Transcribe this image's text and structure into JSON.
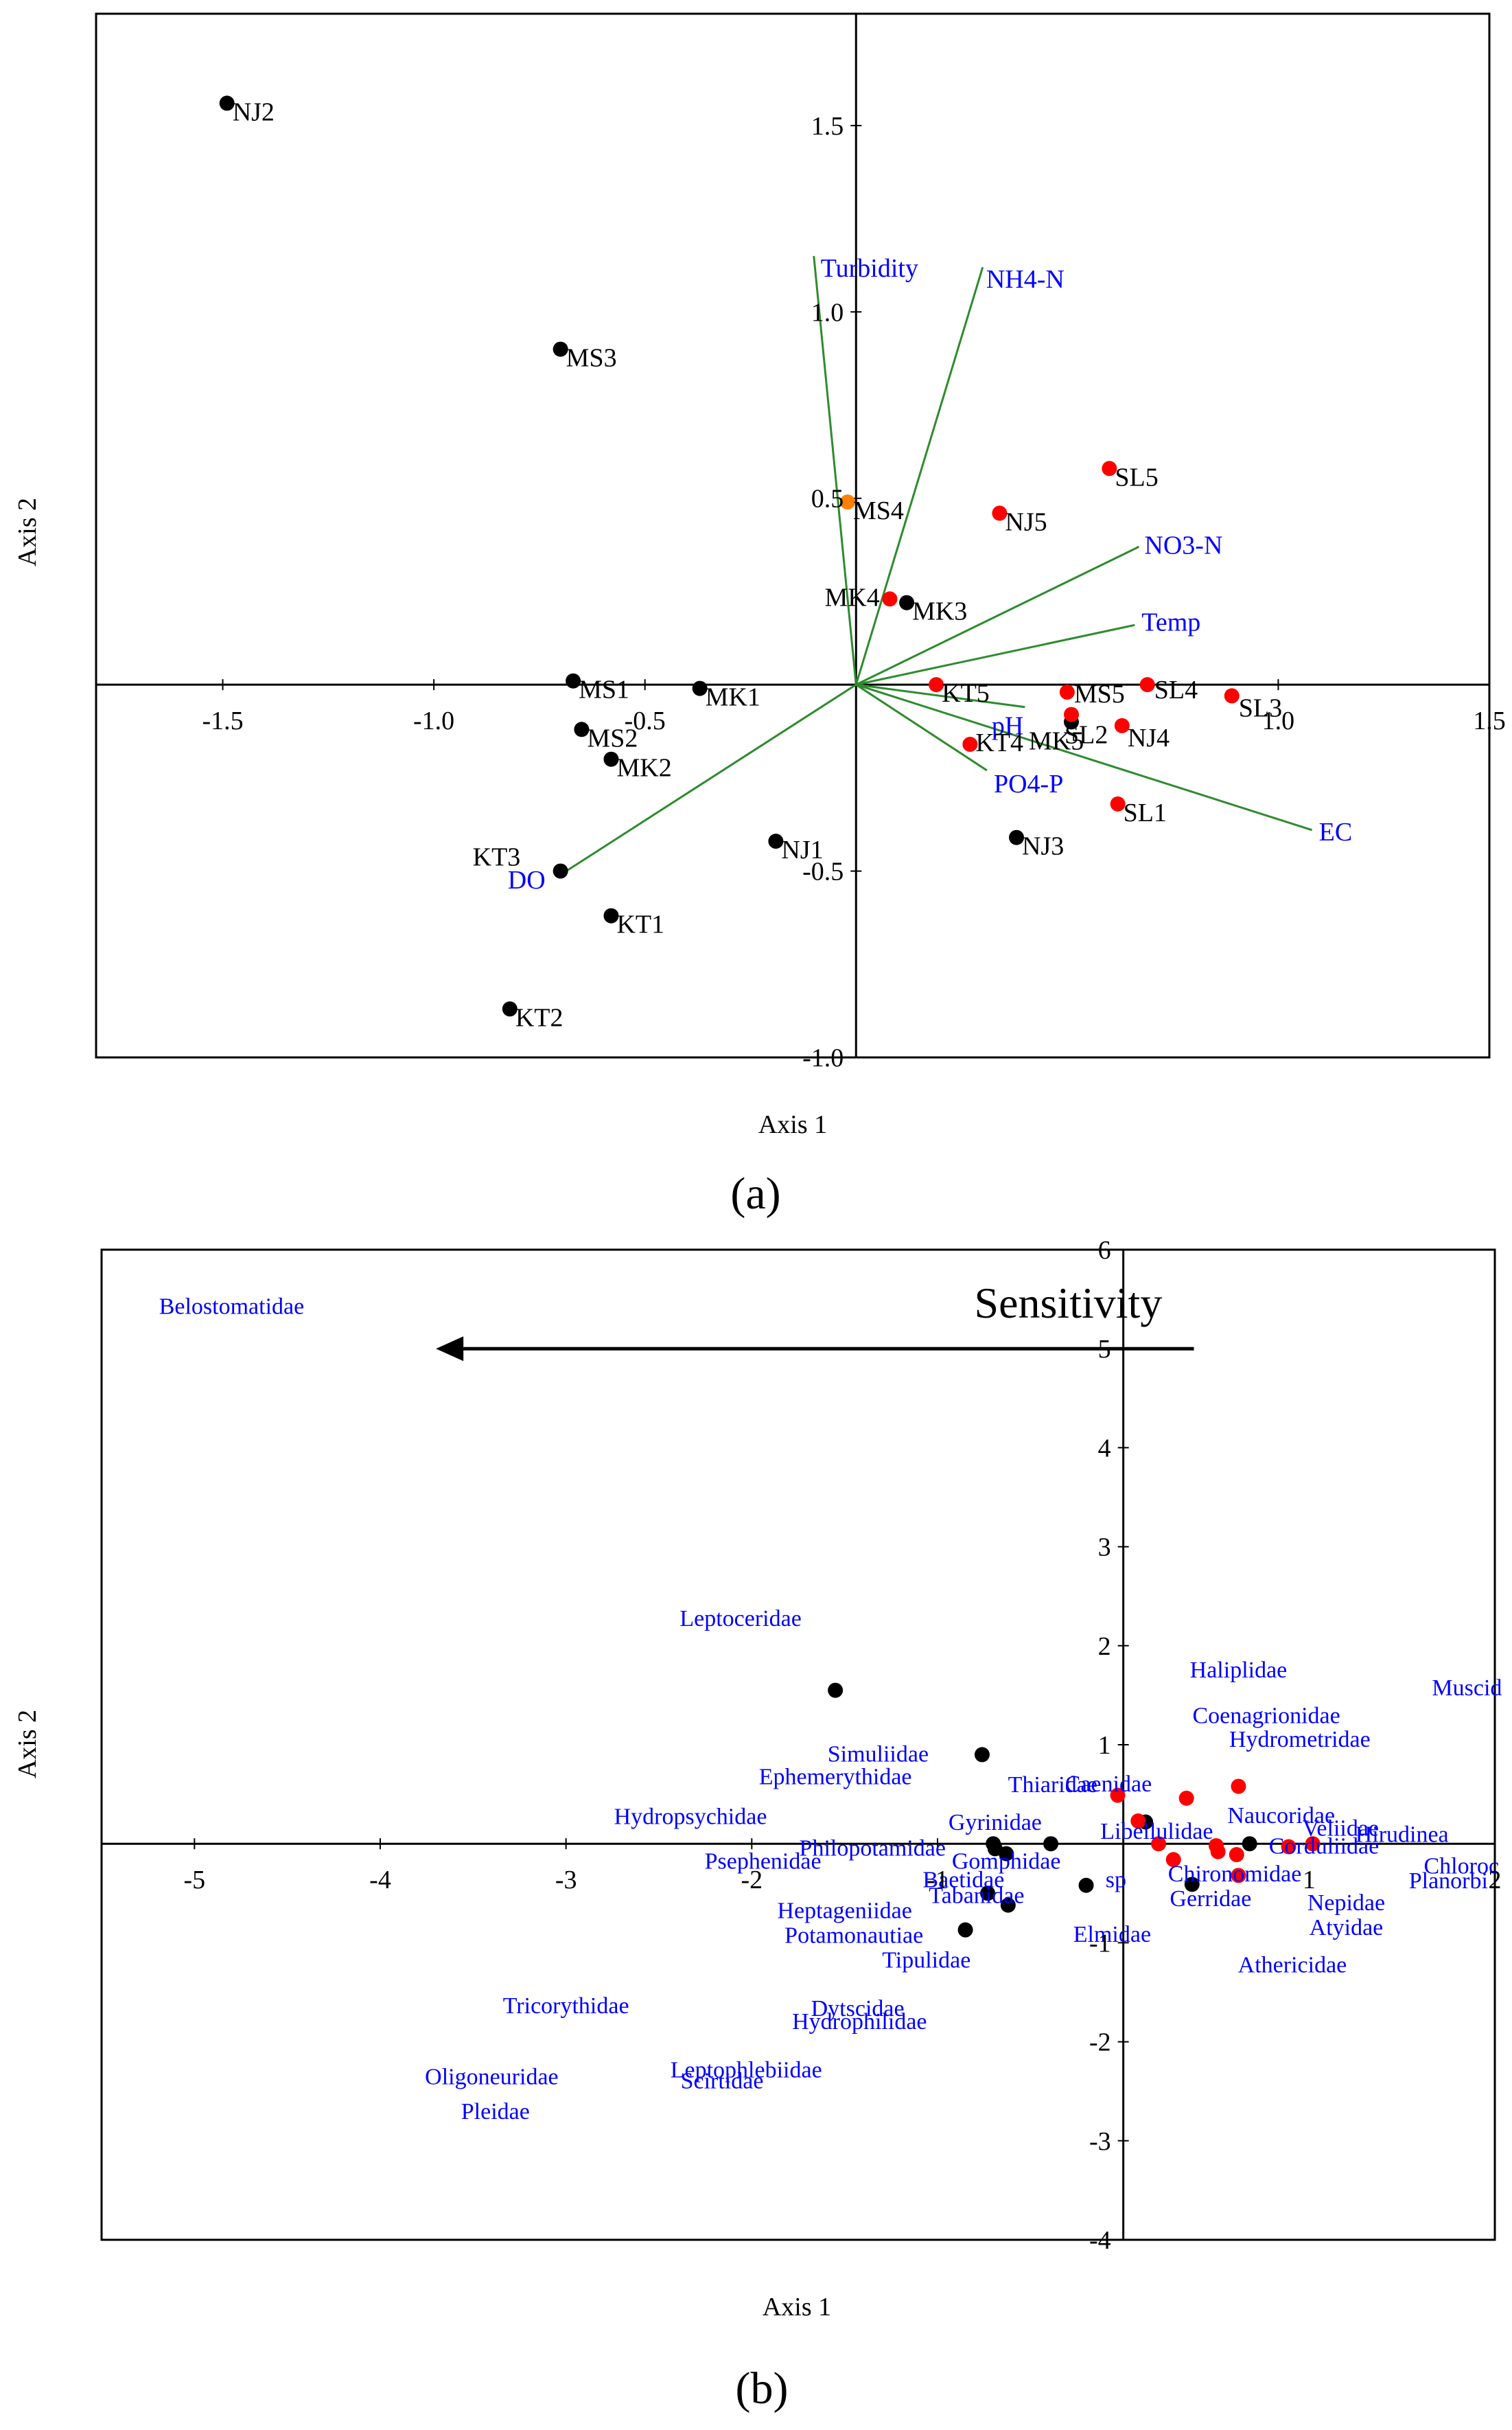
{
  "chart_data": [
    {
      "type": "scatter",
      "panel_label": "(a)",
      "xlabel": "Axis 1",
      "ylabel": "Axis 2",
      "xlim": [
        -1.8,
        1.5
      ],
      "ylim": [
        -1.0,
        1.8
      ],
      "xticks": [
        -1.5,
        -1.0,
        -0.5,
        1.0,
        1.5
      ],
      "xtick_labels": [
        "-1.5",
        "-1.0",
        "-0.5",
        "1.0",
        "1.5"
      ],
      "yticks": [
        1.5,
        1.0,
        0.5,
        -0.5,
        -1.0
      ],
      "ytick_labels": [
        "1.5",
        "1.0",
        "0.5",
        "-0.5",
        "-1.0"
      ],
      "points": [
        {
          "label": "NJ2",
          "x": -1.49,
          "y": 1.56,
          "color": "#000000"
        },
        {
          "label": "MS3",
          "x": -0.7,
          "y": 0.9,
          "color": "#000000"
        },
        {
          "label": "MS1",
          "x": -0.67,
          "y": 0.01,
          "color": "#000000"
        },
        {
          "label": "MS2",
          "x": -0.65,
          "y": -0.12,
          "color": "#000000"
        },
        {
          "label": "MK2",
          "x": -0.58,
          "y": -0.2,
          "color": "#000000"
        },
        {
          "label": "MK1",
          "x": -0.37,
          "y": -0.01,
          "color": "#000000"
        },
        {
          "label": "KT3",
          "x": -0.7,
          "y": -0.5,
          "color": "#000000"
        },
        {
          "label": "KT1",
          "x": -0.58,
          "y": -0.62,
          "color": "#000000"
        },
        {
          "label": "KT2",
          "x": -0.82,
          "y": -0.87,
          "color": "#000000"
        },
        {
          "label": "NJ1",
          "x": -0.19,
          "y": -0.42,
          "color": "#000000"
        },
        {
          "label": "NJ3",
          "x": 0.38,
          "y": -0.41,
          "color": "#000000"
        },
        {
          "label": "MK3",
          "x": 0.12,
          "y": 0.22,
          "color": "#000000"
        },
        {
          "label": "MK5",
          "x": 0.51,
          "y": -0.1,
          "color": "#000000"
        },
        {
          "label": "MS4",
          "x": -0.02,
          "y": 0.49,
          "color": "#ff8000"
        },
        {
          "label": "MK4",
          "x": 0.08,
          "y": 0.23,
          "color": "#ff0000"
        },
        {
          "label": "SL5",
          "x": 0.6,
          "y": 0.58,
          "color": "#ff0000"
        },
        {
          "label": "NJ5",
          "x": 0.34,
          "y": 0.46,
          "color": "#ff0000"
        },
        {
          "label": "KT5",
          "x": 0.19,
          "y": 0.0,
          "color": "#ff0000"
        },
        {
          "label": "MS5",
          "x": 0.5,
          "y": -0.02,
          "color": "#ff0000"
        },
        {
          "label": "SL2",
          "x": 0.51,
          "y": -0.08,
          "color": "#ff0000"
        },
        {
          "label": "SL4",
          "x": 0.69,
          "y": 0.0,
          "color": "#ff0000"
        },
        {
          "label": "SL3",
          "x": 0.89,
          "y": -0.03,
          "color": "#ff0000"
        },
        {
          "label": "NJ4",
          "x": 0.63,
          "y": -0.11,
          "color": "#ff0000"
        },
        {
          "label": "KT4",
          "x": 0.27,
          "y": -0.16,
          "color": "#ff0000"
        },
        {
          "label": "SL1",
          "x": 0.62,
          "y": -0.32,
          "color": "#ff0000"
        }
      ],
      "vectors": [
        {
          "label": "Turbidity",
          "x": -0.1,
          "y": 1.15
        },
        {
          "label": "NH4-N",
          "x": 0.3,
          "y": 1.12
        },
        {
          "label": "NO3-N",
          "x": 0.67,
          "y": 0.37
        },
        {
          "label": "Temp",
          "x": 0.66,
          "y": 0.16
        },
        {
          "label": "EC",
          "x": 1.08,
          "y": -0.39
        },
        {
          "label": "pH",
          "x": 0.4,
          "y": -0.06
        },
        {
          "label": "PO4-P",
          "x": 0.31,
          "y": -0.23
        },
        {
          "label": "DO",
          "x": -0.7,
          "y": -0.51
        }
      ],
      "colors": {
        "vector": "#2e8b2e",
        "variable_label": "#0000ff"
      }
    },
    {
      "type": "scatter",
      "panel_label": "(b)",
      "xlabel": "Axis 1",
      "ylabel": "Axis 2",
      "xlim": [
        -5.5,
        2.0
      ],
      "ylim": [
        -4.0,
        6.0
      ],
      "xticks": [
        -5,
        -4,
        -3,
        -2,
        -1,
        1,
        2
      ],
      "xtick_labels": [
        "-5",
        "-4",
        "-3",
        "-2",
        "-1",
        "1",
        "2"
      ],
      "yticks": [
        6,
        5,
        4,
        3,
        2,
        1,
        -1,
        -2,
        -3,
        -4
      ],
      "ytick_labels": [
        "6",
        "5",
        "4",
        "3",
        "2",
        "1",
        "-1",
        "-2",
        "-3",
        "-4"
      ],
      "annotation": "Sensitivity",
      "arrow": {
        "from": [
          0.38,
          5.0
        ],
        "to": [
          -3.7,
          5.0
        ]
      },
      "taxa": [
        {
          "label": "Belostomatidae",
          "x": -4.8,
          "y": 5.35
        },
        {
          "label": "Leptoceridae",
          "x": -2.06,
          "y": 2.2
        },
        {
          "label": "Simuliidae",
          "x": -1.32,
          "y": 0.83
        },
        {
          "label": "Ephemerythidae",
          "x": -1.55,
          "y": 0.6
        },
        {
          "label": "Hydropsychidae",
          "x": -2.33,
          "y": 0.2
        },
        {
          "label": "Thiaridae",
          "x": -0.38,
          "y": 0.52
        },
        {
          "label": "Gyrinidae",
          "x": -0.69,
          "y": 0.14
        },
        {
          "label": "Philopotamidae",
          "x": -1.35,
          "y": -0.12
        },
        {
          "label": "Psephenidae",
          "x": -1.94,
          "y": -0.25
        },
        {
          "label": "Gomphidae",
          "x": -0.63,
          "y": -0.25
        },
        {
          "label": "Baetidae",
          "x": -0.86,
          "y": -0.44
        },
        {
          "label": "sp",
          "x": -0.04,
          "y": -0.44
        },
        {
          "label": "Tabanidae",
          "x": -0.79,
          "y": -0.6
        },
        {
          "label": "Heptageniidae",
          "x": -1.5,
          "y": -0.75
        },
        {
          "label": "Potamonautiae",
          "x": -1.45,
          "y": -1.0
        },
        {
          "label": "Tipulidae",
          "x": -1.06,
          "y": -1.25
        },
        {
          "label": "Tricorythidae",
          "x": -3.0,
          "y": -1.71
        },
        {
          "label": "Dytscidae",
          "x": -1.43,
          "y": -1.74
        },
        {
          "label": "Hydrophilidae",
          "x": -1.42,
          "y": -1.87
        },
        {
          "label": "Leptophlebiidae",
          "x": -2.03,
          "y": -2.36
        },
        {
          "label": "Scirtidae",
          "x": -2.16,
          "y": -2.47
        },
        {
          "label": "Oligoneuridae",
          "x": -3.4,
          "y": -2.43
        },
        {
          "label": "Pleidae",
          "x": -3.38,
          "y": -2.78
        },
        {
          "label": "Elmidae",
          "x": -0.06,
          "y": -0.99
        },
        {
          "label": "Haliplidae",
          "x": 0.62,
          "y": 1.68
        },
        {
          "label": "Coenagrionidae",
          "x": 0.77,
          "y": 1.22
        },
        {
          "label": "Hydrometridae",
          "x": 0.95,
          "y": 0.98
        },
        {
          "label": "Caenidae",
          "x": -0.08,
          "y": 0.53
        },
        {
          "label": "Naucoridae",
          "x": 0.85,
          "y": 0.21
        },
        {
          "label": "Libellulidae",
          "x": 0.18,
          "y": 0.05
        },
        {
          "label": "Veliidae",
          "x": 1.17,
          "y": 0.08
        },
        {
          "label": "Hirudinea",
          "x": 1.5,
          "y": 0.02
        },
        {
          "label": "Corduliidae",
          "x": 1.08,
          "y": -0.1
        },
        {
          "label": "Chironomidae",
          "x": 0.6,
          "y": -0.38
        },
        {
          "label": "Gerridae",
          "x": 0.47,
          "y": -0.63
        },
        {
          "label": "Nepidae",
          "x": 1.2,
          "y": -0.67
        },
        {
          "label": "Atyidae",
          "x": 1.2,
          "y": -0.92
        },
        {
          "label": "Athericidae",
          "x": 0.91,
          "y": -1.3
        },
        {
          "label": "Muscid",
          "x": 1.85,
          "y": 1.5
        },
        {
          "label": "Chloroc",
          "x": 1.82,
          "y": -0.3
        },
        {
          "label": "Planorbi",
          "x": 1.75,
          "y": -0.45
        }
      ],
      "points": [
        {
          "x": -1.55,
          "y": 1.55,
          "color": "#000000"
        },
        {
          "x": -0.76,
          "y": 0.9,
          "color": "#000000"
        },
        {
          "x": -0.7,
          "y": 0.0,
          "color": "#000000"
        },
        {
          "x": -0.69,
          "y": -0.05,
          "color": "#000000"
        },
        {
          "x": -0.63,
          "y": -0.1,
          "color": "#000000"
        },
        {
          "x": -0.39,
          "y": 0.0,
          "color": "#000000"
        },
        {
          "x": -0.73,
          "y": -0.5,
          "color": "#000000"
        },
        {
          "x": -0.62,
          "y": -0.62,
          "color": "#000000"
        },
        {
          "x": -0.85,
          "y": -0.87,
          "color": "#000000"
        },
        {
          "x": -0.2,
          "y": -0.42,
          "color": "#000000"
        },
        {
          "x": 0.37,
          "y": -0.41,
          "color": "#000000"
        },
        {
          "x": 0.12,
          "y": 0.22,
          "color": "#000000"
        },
        {
          "x": 0.68,
          "y": 0.0,
          "color": "#000000"
        },
        {
          "x": -0.03,
          "y": 0.49,
          "color": "#ff0000"
        },
        {
          "x": 0.08,
          "y": 0.23,
          "color": "#ff0000"
        },
        {
          "x": 0.62,
          "y": 0.58,
          "color": "#ff0000"
        },
        {
          "x": 0.34,
          "y": 0.46,
          "color": "#ff0000"
        },
        {
          "x": 0.19,
          "y": 0.0,
          "color": "#ff0000"
        },
        {
          "x": 0.5,
          "y": -0.02,
          "color": "#ff0000"
        },
        {
          "x": 0.51,
          "y": -0.08,
          "color": "#ff0000"
        },
        {
          "x": 0.89,
          "y": -0.03,
          "color": "#ff0000"
        },
        {
          "x": 0.61,
          "y": -0.11,
          "color": "#ff0000"
        },
        {
          "x": 0.27,
          "y": -0.16,
          "color": "#ff0000"
        },
        {
          "x": 0.62,
          "y": -0.32,
          "color": "#ff0000"
        },
        {
          "x": 1.02,
          "y": 0.0,
          "color": "#ff0000"
        }
      ],
      "colors": {
        "taxon_label": "#0000ff"
      }
    }
  ]
}
